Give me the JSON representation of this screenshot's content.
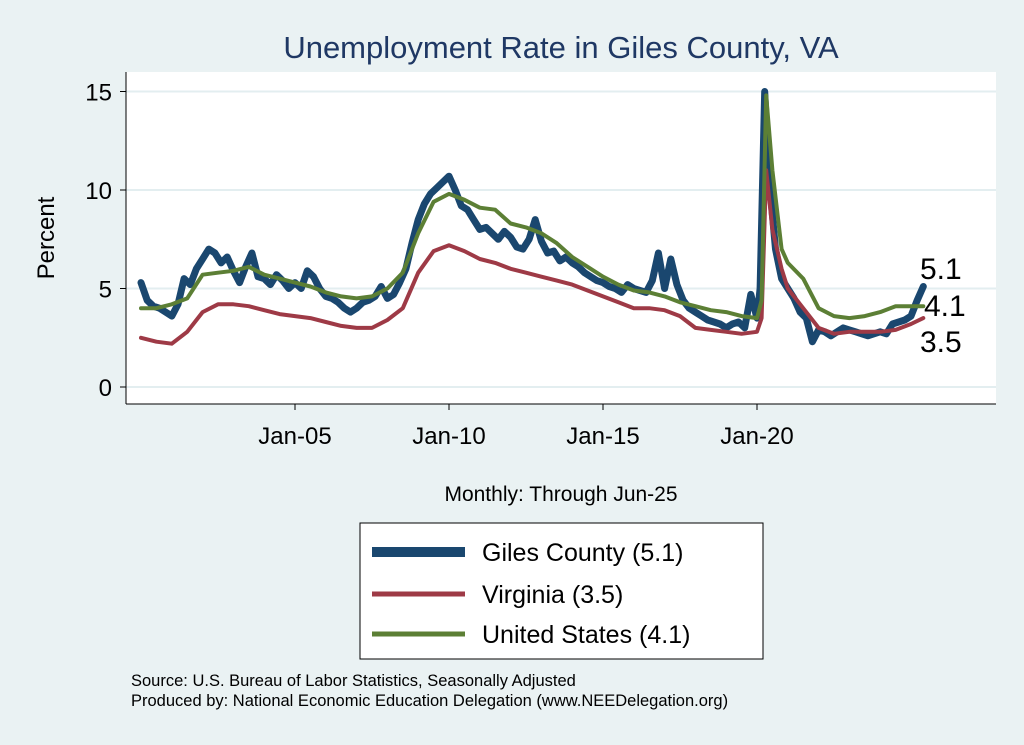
{
  "chart_data": {
    "type": "line",
    "title": "Unemployment Rate in Giles  County, VA",
    "xlabel": "Monthly: Through Jun-25",
    "ylabel": "Percent",
    "ylim": [
      0,
      16
    ],
    "yticks": [
      0,
      5,
      10,
      15
    ],
    "xticks": [
      {
        "x": 2005.0,
        "label": "Jan-05"
      },
      {
        "x": 2010.0,
        "label": "Jan-10"
      },
      {
        "x": 2015.0,
        "label": "Jan-15"
      },
      {
        "x": 2020.0,
        "label": "Jan-20"
      }
    ],
    "grid": true,
    "legend_position": "bottom",
    "series": [
      {
        "name": "Giles  County (5.1)",
        "legend_label": "Giles  County (5.1)",
        "end_label": "5.1",
        "color": "#1a476f",
        "points": [
          [
            2000.0,
            5.3
          ],
          [
            2000.2,
            4.4
          ],
          [
            2000.4,
            4.1
          ],
          [
            2000.6,
            4.0
          ],
          [
            2000.8,
            3.8
          ],
          [
            2001.0,
            3.6
          ],
          [
            2001.2,
            4.2
          ],
          [
            2001.4,
            5.5
          ],
          [
            2001.6,
            5.2
          ],
          [
            2001.8,
            6.0
          ],
          [
            2002.0,
            6.5
          ],
          [
            2002.2,
            7.0
          ],
          [
            2002.4,
            6.8
          ],
          [
            2002.6,
            6.3
          ],
          [
            2002.8,
            6.6
          ],
          [
            2003.0,
            5.9
          ],
          [
            2003.2,
            5.3
          ],
          [
            2003.4,
            6.1
          ],
          [
            2003.6,
            6.8
          ],
          [
            2003.8,
            5.6
          ],
          [
            2004.0,
            5.5
          ],
          [
            2004.2,
            5.2
          ],
          [
            2004.4,
            5.7
          ],
          [
            2004.6,
            5.4
          ],
          [
            2004.8,
            5.0
          ],
          [
            2005.0,
            5.3
          ],
          [
            2005.2,
            5.0
          ],
          [
            2005.4,
            5.9
          ],
          [
            2005.6,
            5.6
          ],
          [
            2005.8,
            5.0
          ],
          [
            2006.0,
            4.6
          ],
          [
            2006.2,
            4.5
          ],
          [
            2006.4,
            4.3
          ],
          [
            2006.6,
            4.0
          ],
          [
            2006.8,
            3.8
          ],
          [
            2007.0,
            4.0
          ],
          [
            2007.2,
            4.3
          ],
          [
            2007.4,
            4.4
          ],
          [
            2007.6,
            4.6
          ],
          [
            2007.8,
            5.1
          ],
          [
            2008.0,
            4.5
          ],
          [
            2008.2,
            4.7
          ],
          [
            2008.4,
            5.3
          ],
          [
            2008.6,
            6.0
          ],
          [
            2008.8,
            7.3
          ],
          [
            2009.0,
            8.5
          ],
          [
            2009.2,
            9.3
          ],
          [
            2009.4,
            9.8
          ],
          [
            2009.6,
            10.1
          ],
          [
            2009.8,
            10.4
          ],
          [
            2010.0,
            10.7
          ],
          [
            2010.2,
            10.0
          ],
          [
            2010.4,
            9.2
          ],
          [
            2010.6,
            9.0
          ],
          [
            2010.8,
            8.5
          ],
          [
            2011.0,
            8.0
          ],
          [
            2011.2,
            8.1
          ],
          [
            2011.4,
            7.8
          ],
          [
            2011.6,
            7.5
          ],
          [
            2011.8,
            7.9
          ],
          [
            2012.0,
            7.6
          ],
          [
            2012.2,
            7.1
          ],
          [
            2012.4,
            7.0
          ],
          [
            2012.6,
            7.5
          ],
          [
            2012.8,
            8.5
          ],
          [
            2013.0,
            7.4
          ],
          [
            2013.2,
            6.8
          ],
          [
            2013.4,
            6.9
          ],
          [
            2013.6,
            6.4
          ],
          [
            2013.8,
            6.6
          ],
          [
            2014.0,
            6.3
          ],
          [
            2014.2,
            6.1
          ],
          [
            2014.4,
            5.8
          ],
          [
            2014.6,
            5.6
          ],
          [
            2014.8,
            5.4
          ],
          [
            2015.0,
            5.3
          ],
          [
            2015.2,
            5.1
          ],
          [
            2015.4,
            5.0
          ],
          [
            2015.6,
            4.8
          ],
          [
            2015.8,
            5.2
          ],
          [
            2016.0,
            5.0
          ],
          [
            2016.2,
            4.9
          ],
          [
            2016.4,
            4.8
          ],
          [
            2016.6,
            5.4
          ],
          [
            2016.8,
            6.8
          ],
          [
            2017.0,
            5.0
          ],
          [
            2017.2,
            6.5
          ],
          [
            2017.4,
            5.2
          ],
          [
            2017.6,
            4.4
          ],
          [
            2017.8,
            4.0
          ],
          [
            2018.0,
            3.8
          ],
          [
            2018.2,
            3.6
          ],
          [
            2018.4,
            3.4
          ],
          [
            2018.6,
            3.3
          ],
          [
            2018.8,
            3.2
          ],
          [
            2019.0,
            3.0
          ],
          [
            2019.2,
            3.2
          ],
          [
            2019.4,
            3.3
          ],
          [
            2019.6,
            3.0
          ],
          [
            2019.8,
            4.7
          ],
          [
            2020.0,
            3.5
          ],
          [
            2020.1,
            5.0
          ],
          [
            2020.25,
            15.0
          ],
          [
            2020.4,
            10.5
          ],
          [
            2020.6,
            7.0
          ],
          [
            2020.8,
            5.5
          ],
          [
            2021.0,
            5.0
          ],
          [
            2021.2,
            4.5
          ],
          [
            2021.4,
            3.8
          ],
          [
            2021.6,
            3.5
          ],
          [
            2021.8,
            2.3
          ],
          [
            2022.0,
            2.9
          ],
          [
            2022.2,
            2.8
          ],
          [
            2022.4,
            2.6
          ],
          [
            2022.6,
            2.8
          ],
          [
            2022.8,
            3.0
          ],
          [
            2023.0,
            2.9
          ],
          [
            2023.2,
            2.8
          ],
          [
            2023.4,
            2.7
          ],
          [
            2023.6,
            2.6
          ],
          [
            2023.8,
            2.7
          ],
          [
            2024.0,
            2.8
          ],
          [
            2024.2,
            2.7
          ],
          [
            2024.4,
            3.2
          ],
          [
            2024.6,
            3.3
          ],
          [
            2024.8,
            3.4
          ],
          [
            2025.0,
            3.6
          ],
          [
            2025.2,
            4.4
          ],
          [
            2025.4,
            5.1
          ]
        ]
      },
      {
        "name": "Virginia (3.5)",
        "legend_label": "Virginia (3.5)",
        "end_label": "3.5",
        "color": "#9e3a46",
        "points": [
          [
            2000.0,
            2.5
          ],
          [
            2000.5,
            2.3
          ],
          [
            2001.0,
            2.2
          ],
          [
            2001.5,
            2.8
          ],
          [
            2002.0,
            3.8
          ],
          [
            2002.5,
            4.2
          ],
          [
            2003.0,
            4.2
          ],
          [
            2003.5,
            4.1
          ],
          [
            2004.0,
            3.9
          ],
          [
            2004.5,
            3.7
          ],
          [
            2005.0,
            3.6
          ],
          [
            2005.5,
            3.5
          ],
          [
            2006.0,
            3.3
          ],
          [
            2006.5,
            3.1
          ],
          [
            2007.0,
            3.0
          ],
          [
            2007.5,
            3.0
          ],
          [
            2008.0,
            3.4
          ],
          [
            2008.5,
            4.0
          ],
          [
            2009.0,
            5.8
          ],
          [
            2009.5,
            6.9
          ],
          [
            2010.0,
            7.2
          ],
          [
            2010.5,
            6.9
          ],
          [
            2011.0,
            6.5
          ],
          [
            2011.5,
            6.3
          ],
          [
            2012.0,
            6.0
          ],
          [
            2012.5,
            5.8
          ],
          [
            2013.0,
            5.6
          ],
          [
            2013.5,
            5.4
          ],
          [
            2014.0,
            5.2
          ],
          [
            2014.5,
            4.9
          ],
          [
            2015.0,
            4.6
          ],
          [
            2015.5,
            4.3
          ],
          [
            2016.0,
            4.0
          ],
          [
            2016.5,
            4.0
          ],
          [
            2017.0,
            3.9
          ],
          [
            2017.5,
            3.6
          ],
          [
            2018.0,
            3.0
          ],
          [
            2018.5,
            2.9
          ],
          [
            2019.0,
            2.8
          ],
          [
            2019.5,
            2.7
          ],
          [
            2020.0,
            2.8
          ],
          [
            2020.15,
            3.5
          ],
          [
            2020.3,
            11.0
          ],
          [
            2020.5,
            8.0
          ],
          [
            2020.8,
            6.0
          ],
          [
            2021.0,
            5.0
          ],
          [
            2021.5,
            4.0
          ],
          [
            2022.0,
            3.0
          ],
          [
            2022.5,
            2.7
          ],
          [
            2023.0,
            2.8
          ],
          [
            2023.5,
            2.8
          ],
          [
            2024.0,
            2.8
          ],
          [
            2024.5,
            2.9
          ],
          [
            2025.0,
            3.2
          ],
          [
            2025.4,
            3.5
          ]
        ]
      },
      {
        "name": "United States (4.1)",
        "legend_label": "United States (4.1)",
        "end_label": "4.1",
        "color": "#5c7f35",
        "points": [
          [
            2000.0,
            4.0
          ],
          [
            2000.5,
            4.0
          ],
          [
            2001.0,
            4.2
          ],
          [
            2001.5,
            4.5
          ],
          [
            2002.0,
            5.7
          ],
          [
            2002.5,
            5.8
          ],
          [
            2003.0,
            5.9
          ],
          [
            2003.5,
            6.1
          ],
          [
            2004.0,
            5.7
          ],
          [
            2004.5,
            5.5
          ],
          [
            2005.0,
            5.3
          ],
          [
            2005.5,
            5.1
          ],
          [
            2006.0,
            4.8
          ],
          [
            2006.5,
            4.6
          ],
          [
            2007.0,
            4.5
          ],
          [
            2007.5,
            4.6
          ],
          [
            2008.0,
            5.0
          ],
          [
            2008.5,
            5.8
          ],
          [
            2009.0,
            7.8
          ],
          [
            2009.5,
            9.4
          ],
          [
            2010.0,
            9.8
          ],
          [
            2010.5,
            9.5
          ],
          [
            2011.0,
            9.1
          ],
          [
            2011.5,
            9.0
          ],
          [
            2012.0,
            8.3
          ],
          [
            2012.5,
            8.1
          ],
          [
            2013.0,
            7.8
          ],
          [
            2013.5,
            7.3
          ],
          [
            2014.0,
            6.6
          ],
          [
            2014.5,
            6.1
          ],
          [
            2015.0,
            5.6
          ],
          [
            2015.5,
            5.2
          ],
          [
            2016.0,
            4.9
          ],
          [
            2016.5,
            4.8
          ],
          [
            2017.0,
            4.6
          ],
          [
            2017.5,
            4.3
          ],
          [
            2018.0,
            4.1
          ],
          [
            2018.5,
            3.9
          ],
          [
            2019.0,
            3.8
          ],
          [
            2019.5,
            3.6
          ],
          [
            2020.0,
            3.5
          ],
          [
            2020.15,
            4.4
          ],
          [
            2020.3,
            14.8
          ],
          [
            2020.5,
            11.0
          ],
          [
            2020.8,
            7.0
          ],
          [
            2021.0,
            6.3
          ],
          [
            2021.5,
            5.5
          ],
          [
            2022.0,
            4.0
          ],
          [
            2022.5,
            3.6
          ],
          [
            2023.0,
            3.5
          ],
          [
            2023.5,
            3.6
          ],
          [
            2024.0,
            3.8
          ],
          [
            2024.5,
            4.1
          ],
          [
            2025.0,
            4.1
          ],
          [
            2025.4,
            4.1
          ]
        ]
      }
    ]
  },
  "footer": {
    "source": "Source: U.S. Bureau of Labor Statistics, Seasonally Adjusted",
    "produced": "Produced by: National Economic Education Delegation (www.NEEDelegation.org)"
  }
}
